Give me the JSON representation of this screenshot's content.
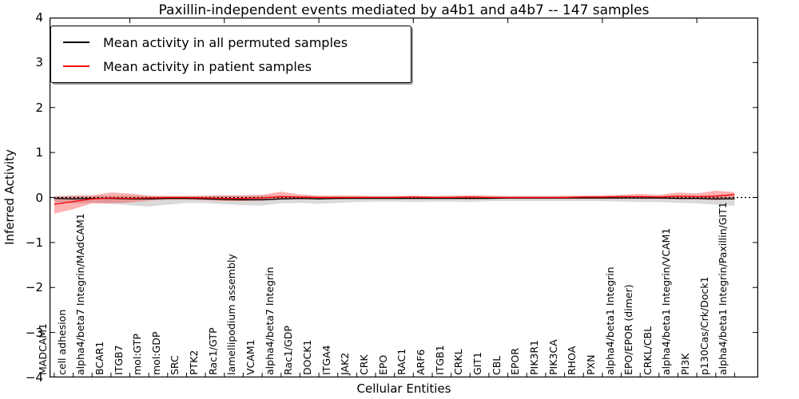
{
  "title": "Paxillin-independent events mediated by a4b1 and a4b7 -- 147 samples",
  "legend": {
    "items": [
      {
        "label": "Mean activity in all permuted samples",
        "color": "#000000"
      },
      {
        "label": "Mean activity in patient samples",
        "color": "#ff0000"
      }
    ]
  },
  "chart_data": {
    "type": "line",
    "title": "Paxillin-independent events mediated by a4b1 and a4b7 -- 147 samples",
    "xlabel": "Cellular Entities",
    "ylabel": "Inferred Activity",
    "ylim": [
      -4,
      4
    ],
    "xlim": [
      -0.25,
      37.25
    ],
    "yticks": [
      4,
      3,
      2,
      1,
      0,
      -1,
      -2,
      -3,
      -4
    ],
    "ytick_labels": [
      "4",
      "3",
      "2",
      "1",
      "0",
      "−1",
      "−2",
      "−3",
      "−4"
    ],
    "top_tick_indices": [
      4,
      9,
      14,
      19,
      24,
      29,
      34
    ],
    "grid": false,
    "legend_position": "upper left",
    "zero_line": {
      "y": 0,
      "style": "dotted",
      "color": "#000000"
    },
    "categories": [
      "MADCAM1",
      "cell adhesion",
      "alpha4/beta7 Integrin/MAdCAM1",
      "BCAR1",
      "ITGB7",
      "mol:GTP",
      "mol:GDP",
      "SRC",
      "PTK2",
      "Rac1/GTP",
      "lamellipodium assembly",
      "VCAM1",
      "alpha4/beta7 Integrin",
      "Rac1/GDP",
      "DOCK1",
      "ITGA4",
      "JAK2",
      "CRK",
      "EPO",
      "RAC1",
      "ARF6",
      "ITGB1",
      "CRKL",
      "GIT1",
      "CBL",
      "EPOR",
      "PIK3R1",
      "PIK3CA",
      "RHOA",
      "PXN",
      "alpha4/beta1 Integrin",
      "EPO/EPOR (dimer)",
      "CRKL/CBL",
      "alpha4/beta1 Integrin/VCAM1",
      "PI3K",
      "p130Cas/Crk/Dock1",
      "alpha4/beta1 Integrin/Paxillin/GIT1"
    ],
    "series": [
      {
        "name": "Mean activity in all permuted samples",
        "color": "#000000",
        "values": [
          -0.02,
          -0.03,
          -0.02,
          -0.02,
          -0.03,
          -0.03,
          -0.02,
          -0.02,
          -0.03,
          -0.04,
          -0.05,
          -0.05,
          -0.03,
          -0.02,
          -0.03,
          -0.02,
          -0.02,
          -0.02,
          -0.02,
          -0.02,
          -0.02,
          -0.02,
          -0.02,
          -0.02,
          -0.01,
          -0.01,
          -0.01,
          -0.01,
          -0.01,
          -0.01,
          -0.01,
          -0.01,
          -0.01,
          -0.02,
          -0.02,
          -0.03,
          -0.03
        ],
        "band": {
          "fill": "rgba(128,128,128,0.30)",
          "upper": [
            0.03,
            0.04,
            0.04,
            0.04,
            0.04,
            0.03,
            0.03,
            0.03,
            0.03,
            0.04,
            0.04,
            0.04,
            0.04,
            0.03,
            0.03,
            0.03,
            0.03,
            0.03,
            0.03,
            0.03,
            0.03,
            0.03,
            0.03,
            0.03,
            0.02,
            0.02,
            0.02,
            0.02,
            0.03,
            0.03,
            0.03,
            0.03,
            0.03,
            0.04,
            0.04,
            0.05,
            0.05
          ],
          "lower": [
            -0.1,
            -0.13,
            -0.12,
            -0.14,
            -0.17,
            -0.2,
            -0.16,
            -0.12,
            -0.12,
            -0.15,
            -0.17,
            -0.18,
            -0.13,
            -0.12,
            -0.14,
            -0.12,
            -0.1,
            -0.09,
            -0.09,
            -0.1,
            -0.09,
            -0.09,
            -0.1,
            -0.08,
            -0.08,
            -0.08,
            -0.08,
            -0.08,
            -0.08,
            -0.08,
            -0.09,
            -0.1,
            -0.1,
            -0.12,
            -0.13,
            -0.16,
            -0.18
          ]
        }
      },
      {
        "name": "Mean activity in patient samples",
        "color": "#ff0000",
        "values": [
          -0.15,
          -0.09,
          -0.03,
          -0.01,
          -0.02,
          -0.01,
          0.0,
          0.0,
          -0.01,
          -0.02,
          -0.02,
          -0.01,
          0.02,
          0.01,
          0.0,
          0.0,
          0.0,
          0.0,
          0.0,
          0.01,
          0.0,
          0.0,
          0.01,
          0.0,
          0.0,
          0.0,
          0.0,
          0.0,
          0.01,
          0.01,
          0.02,
          0.02,
          0.01,
          0.03,
          0.02,
          0.03,
          0.07
        ],
        "band": {
          "fill": "rgba(255,0,0,0.30)",
          "upper": [
            0.02,
            0.04,
            0.05,
            0.11,
            0.09,
            0.04,
            0.03,
            0.03,
            0.04,
            0.05,
            0.05,
            0.06,
            0.13,
            0.07,
            0.04,
            0.04,
            0.04,
            0.03,
            0.03,
            0.04,
            0.03,
            0.04,
            0.05,
            0.04,
            0.03,
            0.03,
            0.03,
            0.04,
            0.04,
            0.05,
            0.06,
            0.08,
            0.06,
            0.11,
            0.09,
            0.15,
            0.12
          ],
          "lower": [
            -0.36,
            -0.26,
            -0.13,
            -0.13,
            -0.11,
            -0.07,
            -0.05,
            -0.05,
            -0.06,
            -0.08,
            -0.08,
            -0.07,
            -0.05,
            -0.04,
            -0.04,
            -0.04,
            -0.03,
            -0.03,
            -0.03,
            -0.03,
            -0.03,
            -0.03,
            -0.04,
            -0.03,
            -0.03,
            -0.03,
            -0.03,
            -0.03,
            -0.03,
            -0.03,
            -0.03,
            -0.03,
            -0.03,
            -0.04,
            -0.04,
            -0.06,
            -0.02
          ]
        }
      }
    ]
  }
}
